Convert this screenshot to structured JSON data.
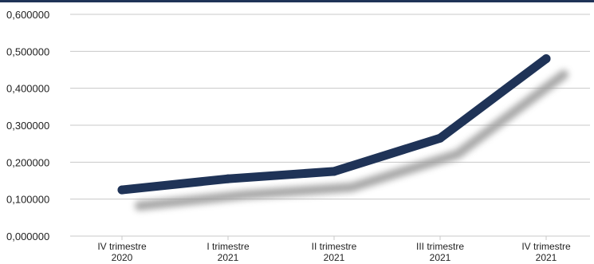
{
  "chart_data": {
    "type": "line",
    "title": "",
    "xlabel": "",
    "ylabel": "",
    "categories": [
      [
        "IV trimestre",
        "2020"
      ],
      [
        "I trimestre",
        "2021"
      ],
      [
        "II trimestre",
        "2021"
      ],
      [
        "III trimestre",
        "2021"
      ],
      [
        "IV trimestre",
        "2021"
      ]
    ],
    "series": [
      {
        "values": [
          0.125,
          0.155,
          0.175,
          0.265,
          0.48
        ]
      }
    ],
    "ylim": [
      0,
      0.6
    ],
    "yticks": [
      "0,000000",
      "0,100000",
      "0,200000",
      "0,300000",
      "0,400000",
      "0,500000",
      "0,600000"
    ],
    "grid": true,
    "legend": "none",
    "colors": {
      "line": "#1f3357",
      "grid": "#c8c8c8",
      "frame_top": "#1f3357",
      "shadow": "#9a9a9a"
    }
  }
}
